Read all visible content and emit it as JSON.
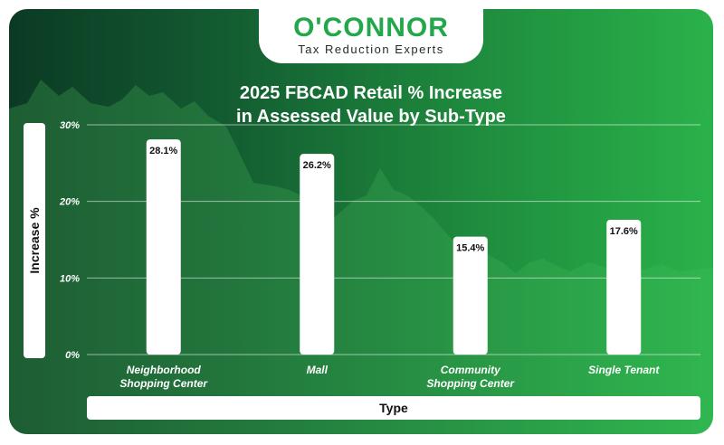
{
  "brand": {
    "name": "O'CONNOR",
    "tagline": "Tax Reduction Experts",
    "accent": "#22a84a"
  },
  "chart_data": {
    "type": "bar",
    "title": [
      "2025 FBCAD Retail % Increase",
      "in Assessed Value by Sub-Type"
    ],
    "xlabel": "Type",
    "ylabel": "Increase %",
    "categories": [
      [
        "Neighborhood",
        "Shopping Center"
      ],
      [
        "Mall"
      ],
      [
        "Community",
        "Shopping Center"
      ],
      [
        "Single Tenant"
      ]
    ],
    "values": [
      28.1,
      26.2,
      15.4,
      17.6
    ],
    "value_labels": [
      "28.1%",
      "26.2%",
      "15.4%",
      "17.6%"
    ],
    "ylim": [
      0,
      30
    ],
    "yticks": [
      0,
      10,
      20,
      30
    ],
    "ytick_labels": [
      "0%",
      "10%",
      "20%",
      "30%"
    ],
    "grid": true,
    "bar_color": "#ffffff"
  }
}
